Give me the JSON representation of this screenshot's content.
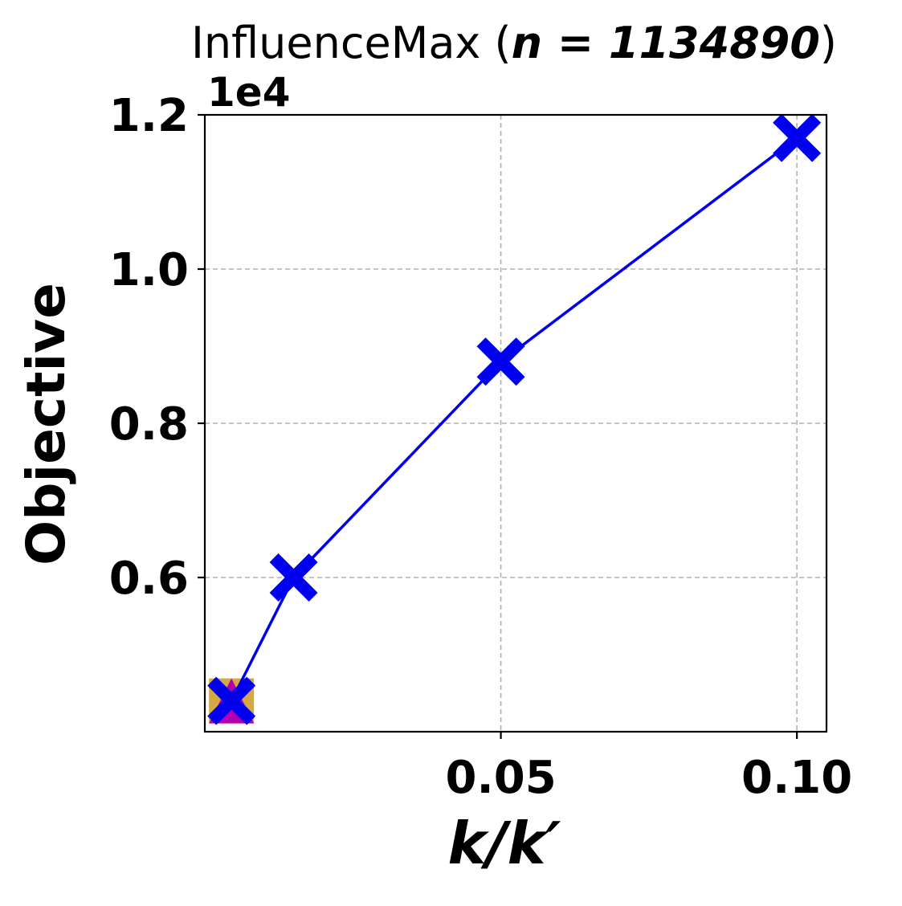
{
  "chart_data": {
    "type": "line",
    "title": "InfluenceMax (",
    "title_math": "n = 1134890",
    "title_close": ")",
    "xlabel": "k/k′",
    "ylabel": "Objective",
    "y_offset_label": "1e4",
    "xlim": [
      0.0,
      0.105
    ],
    "ylim": [
      0.4,
      1.2
    ],
    "x_ticks": [
      0.05,
      0.1
    ],
    "x_tick_labels": [
      "0.05",
      "0.10"
    ],
    "y_ticks": [
      0.6,
      0.8,
      1.0,
      1.2
    ],
    "y_tick_labels": [
      "0.6",
      "0.8",
      "1.0",
      "1.2"
    ],
    "grid": true,
    "background_markers": [
      {
        "shape": "square",
        "color": "#d4a843",
        "x": 0.0045,
        "y": 0.44
      },
      {
        "shape": "triangle",
        "color": "#b000b0",
        "x": 0.0045,
        "y": 0.44
      }
    ],
    "series": [
      {
        "color": "#0000ee",
        "marker": "X",
        "x": [
          0.0045,
          0.015,
          0.05,
          0.1
        ],
        "y": [
          0.44,
          0.6,
          0.88,
          1.17
        ]
      }
    ]
  }
}
